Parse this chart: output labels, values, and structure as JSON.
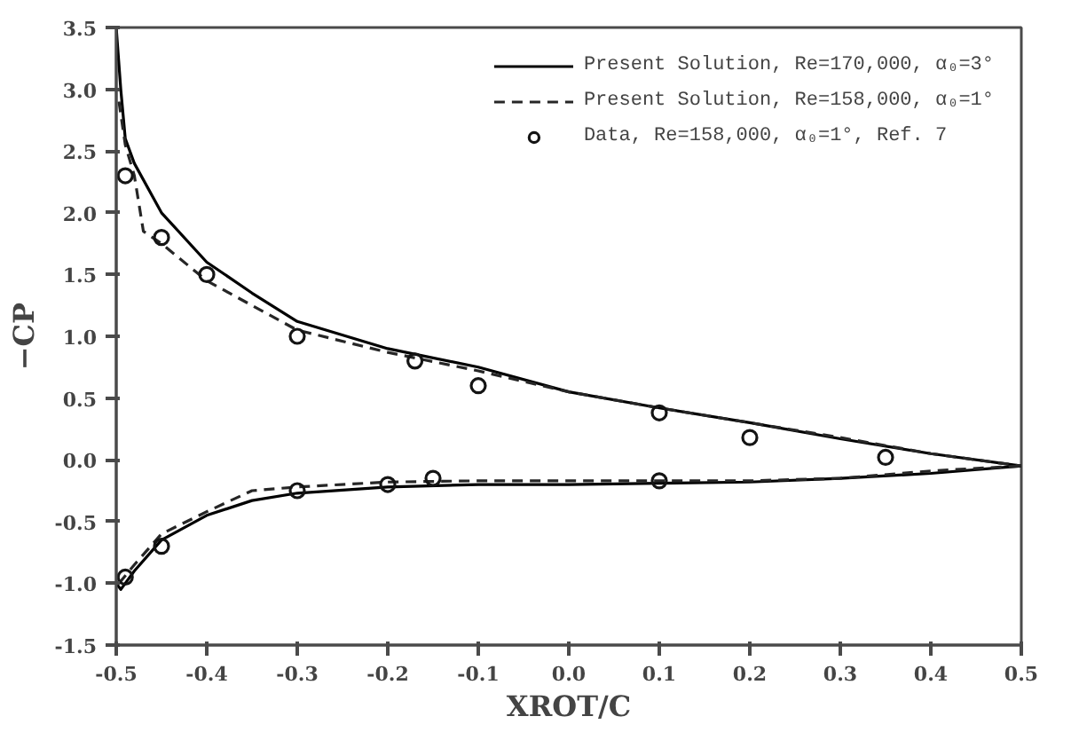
{
  "chart_data": {
    "type": "line",
    "xlabel": "XROT/C",
    "ylabel": "−CP",
    "xlim": [
      -0.5,
      0.5
    ],
    "ylim": [
      -1.5,
      3.5
    ],
    "xticks": [
      {
        "value": -0.5,
        "label": "-0.5"
      },
      {
        "value": -0.4,
        "label": "-0.4"
      },
      {
        "value": -0.3,
        "label": "-0.3"
      },
      {
        "value": -0.2,
        "label": "-0.2"
      },
      {
        "value": -0.1,
        "label": "-0.1"
      },
      {
        "value": 0,
        "label": "0.0"
      },
      0.1,
      0.2,
      0.3,
      0.4,
      0.5
    ],
    "yticks": [
      {
        "value": -1.5,
        "label": "-1.5"
      },
      {
        "value": -1,
        "label": "-1.0"
      },
      {
        "value": -0.5,
        "label": "-0.5"
      },
      {
        "value": 0,
        "label": "0.0"
      },
      0.5,
      {
        "value": 1,
        "label": "1.0"
      },
      1.5,
      {
        "value": 2,
        "label": "2.0"
      },
      2.5,
      {
        "value": 3,
        "label": "3.0"
      },
      3.5
    ],
    "grid": false,
    "legend": "top right",
    "series": [
      {
        "name": "Present Solution, Re=170,000, α₀=3°",
        "color": "#000000",
        "line_style": "solid",
        "x": [
          -0.5,
          -0.495,
          -0.49,
          -0.48,
          -0.45,
          -0.4,
          -0.35,
          -0.3,
          -0.2,
          -0.1,
          0,
          0.1,
          0.2,
          0.3,
          0.4,
          0.5,
          null,
          -0.5,
          -0.495,
          -0.48,
          -0.45,
          -0.4,
          -0.35,
          -0.3,
          -0.2,
          -0.1,
          0,
          0.1,
          0.2,
          0.3,
          0.4,
          0.5
        ],
        "values": [
          3.5,
          3.0,
          2.6,
          2.4,
          2.0,
          1.6,
          1.35,
          1.12,
          0.9,
          0.75,
          0.55,
          0.42,
          0.3,
          0.17,
          0.05,
          -0.05,
          null,
          -1.0,
          -1.05,
          -0.9,
          -0.65,
          -0.45,
          -0.33,
          -0.27,
          -0.22,
          -0.2,
          -0.2,
          -0.19,
          -0.18,
          -0.15,
          -0.11,
          -0.05
        ]
      },
      {
        "name": "Present Solution, Re=158,000, α₀=1°",
        "color": "#262626",
        "line_style": "dashed",
        "x": [
          -0.497,
          -0.49,
          -0.48,
          -0.47,
          -0.45,
          -0.4,
          -0.35,
          -0.3,
          -0.2,
          -0.1,
          0,
          0.1,
          0.2,
          0.3,
          0.4,
          0.5,
          null,
          -0.497,
          -0.48,
          -0.45,
          -0.4,
          -0.35,
          -0.3,
          -0.2,
          -0.1,
          0,
          0.2,
          0.3,
          0.4,
          0.5
        ],
        "values": [
          2.9,
          2.55,
          2.3,
          1.85,
          1.75,
          1.45,
          1.25,
          1.05,
          0.87,
          0.72,
          0.55,
          0.42,
          0.3,
          0.18,
          0.05,
          -0.05,
          null,
          -1.0,
          -0.85,
          -0.6,
          -0.42,
          -0.25,
          -0.22,
          -0.18,
          -0.17,
          -0.17,
          -0.17,
          -0.15,
          -0.09,
          -0.05
        ]
      },
      {
        "name": "Data, Re=158,000, α₀=1°, Ref. 7",
        "color": "#141414",
        "type": "scatter",
        "marker": "circle",
        "x": [
          -0.49,
          -0.45,
          -0.4,
          -0.3,
          -0.17,
          -0.1,
          0.1,
          0.2,
          0.35,
          -0.49,
          -0.45,
          -0.3,
          -0.2,
          -0.15,
          0.1
        ],
        "values": [
          2.3,
          1.8,
          1.5,
          1.0,
          0.8,
          0.6,
          0.38,
          0.18,
          0.02,
          -0.95,
          -0.7,
          -0.25,
          -0.2,
          -0.15,
          -0.17
        ]
      }
    ]
  }
}
